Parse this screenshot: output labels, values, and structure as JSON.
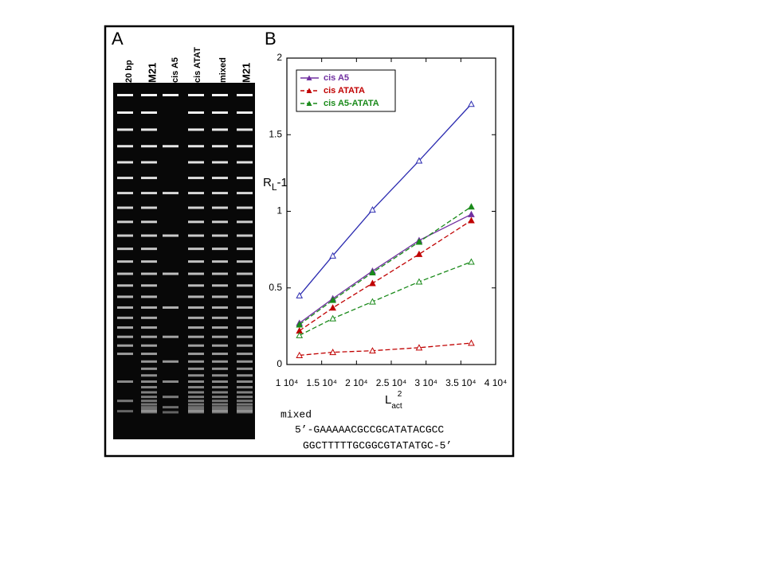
{
  "panel_a": {
    "label": "A",
    "lanes": [
      "20 bp",
      "M21",
      "cis A5",
      "cis ATAT",
      "mixed",
      "M21"
    ]
  },
  "panel_b": {
    "label": "B"
  },
  "chart_data": {
    "type": "line",
    "y_label": {
      "main": "R",
      "sub": "L",
      "rest": "-1"
    },
    "x_label": {
      "main": "L",
      "sub": "act",
      "sup": "2"
    },
    "x": [
      11800,
      16600,
      22300,
      29000,
      36500
    ],
    "xlim": [
      10000,
      40000
    ],
    "xticks": [
      {
        "value": 10000,
        "label": "1 10⁴"
      },
      {
        "value": 15000,
        "label": "1.5 10⁴"
      },
      {
        "value": 20000,
        "label": "2 10⁴"
      },
      {
        "value": 25000,
        "label": "2.5 10⁴"
      },
      {
        "value": 30000,
        "label": "3 10⁴"
      },
      {
        "value": 35000,
        "label": "3.5 10⁴"
      },
      {
        "value": 40000,
        "label": "4 10⁴"
      }
    ],
    "ylim": [
      0,
      2
    ],
    "yticks": [
      0,
      0.5,
      1,
      1.5,
      2
    ],
    "legend": "upper left",
    "series": [
      {
        "name": "cis A5",
        "color": "#7030a0",
        "marker": "filled",
        "dash": false,
        "values": [
          0.27,
          0.43,
          0.61,
          0.81,
          0.98
        ]
      },
      {
        "name": "cis ATATA",
        "color": "#c00000",
        "marker": "filled",
        "dash": true,
        "values": [
          0.22,
          0.37,
          0.53,
          0.72,
          0.94
        ]
      },
      {
        "name": "cis A5-ATATA",
        "color": "#1a8a1a",
        "marker": "filled",
        "dash": true,
        "values": [
          0.26,
          0.42,
          0.6,
          0.8,
          1.03
        ]
      },
      {
        "color": "#2b2bb0",
        "marker": "open",
        "dash": false,
        "values": [
          0.45,
          0.71,
          1.01,
          1.33,
          1.7
        ]
      },
      {
        "color": "#1a8a1a",
        "marker": "open",
        "dash": true,
        "values": [
          0.19,
          0.3,
          0.41,
          0.54,
          0.67
        ]
      },
      {
        "color": "#c00000",
        "marker": "open",
        "dash": true,
        "values": [
          0.06,
          0.08,
          0.09,
          0.11,
          0.14
        ]
      }
    ]
  },
  "sequence": {
    "name": "mixed",
    "top": "5’-GAAAAACGCCGCATATACGCC",
    "bottom": "GGCTTTTTGCGGCGTATATGC-5’"
  }
}
